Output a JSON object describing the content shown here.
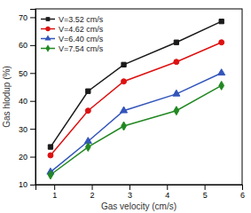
{
  "chart_data": {
    "type": "line",
    "xlabel": "Gas velocity (cm/s)",
    "ylabel": "Gas hlodup (%)",
    "x": [
      0.9,
      1.9,
      2.85,
      4.25,
      5.45
    ],
    "series": [
      {
        "name": "V=3.52 cm/s",
        "color": "#1a1a1a",
        "marker": "square",
        "values": [
          23.5,
          43.5,
          53.0,
          61.0,
          68.5
        ]
      },
      {
        "name": "V=4.62 cm/s",
        "color": "#dd1111",
        "marker": "circle",
        "values": [
          20.5,
          36.5,
          47.0,
          54.0,
          61.0
        ]
      },
      {
        "name": "V=6.40 cm/s",
        "color": "#3355bb",
        "marker": "triangle",
        "values": [
          14.5,
          25.5,
          36.5,
          42.5,
          50.0
        ]
      },
      {
        "name": "V=7.54 cm/s",
        "color": "#228822",
        "marker": "diamond",
        "values": [
          13.5,
          23.5,
          31.0,
          36.5,
          45.5
        ]
      }
    ],
    "xlim": [
      0.5,
      6.0
    ],
    "ylim": [
      10,
      73
    ],
    "xticks": [
      1,
      2,
      3,
      4,
      5,
      6
    ],
    "yticks": [
      10,
      20,
      30,
      40,
      50,
      60,
      70
    ],
    "grid": false,
    "legend": "upper left"
  }
}
